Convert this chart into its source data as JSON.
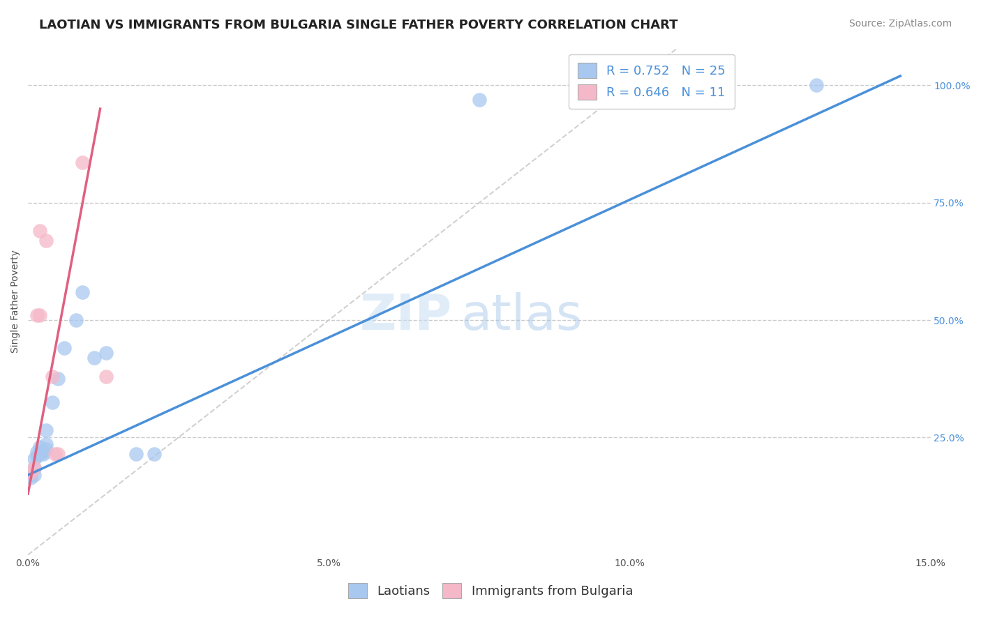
{
  "title": "LAOTIAN VS IMMIGRANTS FROM BULGARIA SINGLE FATHER POVERTY CORRELATION CHART",
  "source_text": "Source: ZipAtlas.com",
  "ylabel": "Single Father Poverty",
  "ytick_labels": [
    "100.0%",
    "75.0%",
    "50.0%",
    "25.0%"
  ],
  "ytick_values": [
    1.0,
    0.75,
    0.5,
    0.25
  ],
  "xlim": [
    0.0,
    0.15
  ],
  "ylim": [
    0.0,
    1.08
  ],
  "watermark_zip": "ZIP",
  "watermark_atlas": "atlas",
  "legend_blue_r": "R = 0.752",
  "legend_blue_n": "N = 25",
  "legend_pink_r": "R = 0.646",
  "legend_pink_n": "N = 11",
  "blue_scatter_color": "#a8c8f0",
  "pink_scatter_color": "#f5b8c8",
  "blue_line_color": "#4a90d9",
  "pink_line_color": "#e06080",
  "diagonal_color": "#cccccc",
  "background_color": "#ffffff",
  "grid_color": "#cccccc",
  "title_fontsize": 13,
  "axis_label_fontsize": 10,
  "tick_fontsize": 10,
  "legend_fontsize": 13,
  "source_fontsize": 10,
  "laotian_x": [
    0.0005,
    0.0005,
    0.001,
    0.001,
    0.001,
    0.0015,
    0.0015,
    0.002,
    0.002,
    0.0025,
    0.0025,
    0.003,
    0.003,
    0.003,
    0.004,
    0.005,
    0.006,
    0.008,
    0.009,
    0.011,
    0.013,
    0.018,
    0.021,
    0.075,
    0.131
  ],
  "laotian_y": [
    0.165,
    0.175,
    0.17,
    0.185,
    0.205,
    0.21,
    0.22,
    0.215,
    0.23,
    0.215,
    0.22,
    0.225,
    0.235,
    0.265,
    0.325,
    0.375,
    0.44,
    0.5,
    0.56,
    0.42,
    0.43,
    0.215,
    0.215,
    0.97,
    1.0
  ],
  "bulgaria_x": [
    0.0005,
    0.001,
    0.0015,
    0.002,
    0.002,
    0.003,
    0.004,
    0.0045,
    0.005,
    0.009,
    0.013
  ],
  "bulgaria_y": [
    0.175,
    0.185,
    0.51,
    0.69,
    0.51,
    0.67,
    0.38,
    0.215,
    0.215,
    0.835,
    0.38
  ],
  "blue_line_x0": 0.0,
  "blue_line_y0": 0.17,
  "blue_line_x1": 0.145,
  "blue_line_y1": 1.02,
  "pink_line_x0": 0.0,
  "pink_line_y0": 0.13,
  "pink_line_x1": 0.012,
  "pink_line_y1": 0.95
}
